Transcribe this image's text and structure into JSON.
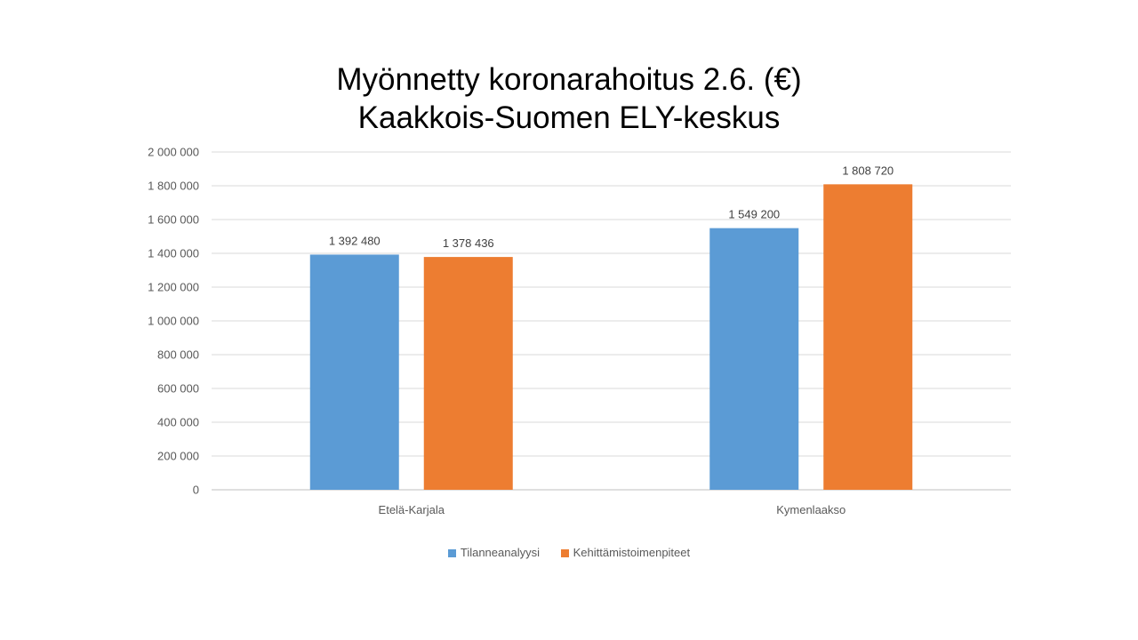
{
  "chart_data": {
    "type": "bar",
    "title_line1": "Myönnetty koronarahoitus 2.6. (€)",
    "title_line2": "Kaakkois-Suomen ELY-keskus",
    "categories": [
      "Etelä-Karjala",
      "Kymenlaakso"
    ],
    "series": [
      {
        "name": "Tilanneanalyysi",
        "color": "#5B9BD5",
        "values": [
          1392480,
          1549200
        ],
        "labels": [
          "1 392 480",
          "1 549 200"
        ]
      },
      {
        "name": "Kehittämistoimenpiteet",
        "color": "#ED7D31",
        "values": [
          1378436,
          1808720
        ],
        "labels": [
          "1 378 436",
          "1 808 720"
        ]
      }
    ],
    "ylim": [
      0,
      2000000
    ],
    "yticks": [
      0,
      200000,
      400000,
      600000,
      800000,
      1000000,
      1200000,
      1400000,
      1600000,
      1800000,
      2000000
    ],
    "ytick_labels": [
      "0",
      "200 000",
      "400 000",
      "600 000",
      "800 000",
      "1 000 000",
      "1 200 000",
      "1 400 000",
      "1 600 000",
      "1 800 000",
      "2 000 000"
    ],
    "grid": true,
    "legend_position": "bottom"
  }
}
